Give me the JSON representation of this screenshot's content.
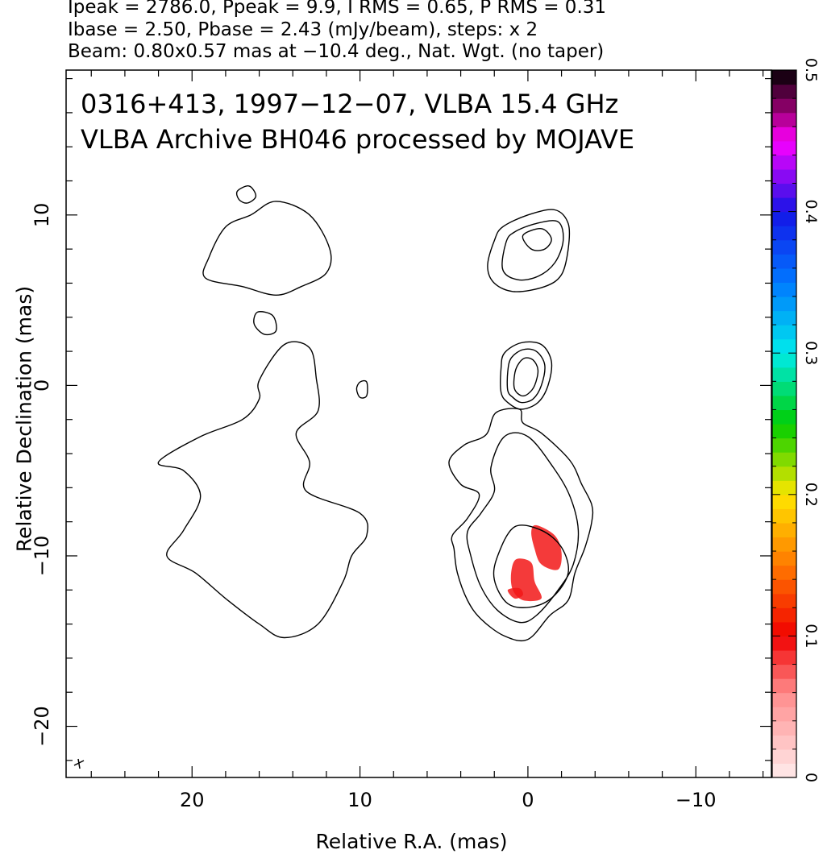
{
  "header": {
    "line1": "Ipeak = 2786.0, Ppeak = 9.9, I RMS = 0.65, P RMS = 0.31",
    "line2": "Ibase = 2.50, Pbase = 2.43 (mJy/beam), steps: x 2",
    "line3": "Beam: 0.80x0.57 mas at −10.4 deg., Nat. Wgt. (no taper)"
  },
  "chart_data": {
    "type": "contour",
    "xlabel": "Relative R.A. (mas)",
    "ylabel": "Relative Declination (mas)",
    "xlim": [
      27.5,
      -14.5
    ],
    "ylim": [
      -23,
      18.5
    ],
    "x_ticks": [
      {
        "value": 20,
        "label": "20"
      },
      {
        "value": 10,
        "label": "10"
      },
      {
        "value": 0,
        "label": "0"
      },
      {
        "value": -10,
        "label": "−10"
      }
    ],
    "y_ticks": [
      {
        "value": 10,
        "label": "10"
      },
      {
        "value": 0,
        "label": "0"
      },
      {
        "value": -10,
        "label": "−10"
      },
      {
        "value": -20,
        "label": "−20"
      }
    ],
    "annotations": [
      "0316+413, 1997−12−07, VLBA 15.4 GHz",
      "VLBA Archive BH046 processed by MOJAVE"
    ],
    "colorbar": {
      "range": [
        0,
        0.5
      ],
      "ticks": [
        {
          "value": 0,
          "label": "0"
        },
        {
          "value": 0.1,
          "label": "0.1"
        },
        {
          "value": 0.2,
          "label": "0.2"
        },
        {
          "value": 0.3,
          "label": "0.3"
        },
        {
          "value": 0.4,
          "label": "0.4"
        },
        {
          "value": 0.5,
          "label": "0.5"
        }
      ]
    },
    "polarization_contours": [
      {
        "name": "north-lobe",
        "points": [
          [
            19.0,
            7.5
          ],
          [
            18.0,
            9.3
          ],
          [
            16.5,
            10.0
          ],
          [
            15.0,
            10.8
          ],
          [
            13.0,
            10.0
          ],
          [
            11.8,
            8.0
          ],
          [
            12.0,
            6.6
          ],
          [
            13.5,
            5.8
          ],
          [
            15.0,
            5.3
          ],
          [
            17.0,
            5.8
          ],
          [
            19.2,
            6.3
          ]
        ]
      },
      {
        "name": "body",
        "points": [
          [
            16.0,
            0.3
          ],
          [
            14.5,
            2.4
          ],
          [
            13.0,
            2.2
          ],
          [
            12.6,
            0.4
          ],
          [
            12.5,
            -1.5
          ],
          [
            13.8,
            -2.8
          ],
          [
            13.0,
            -4.5
          ],
          [
            13.2,
            -6.2
          ],
          [
            10.0,
            -7.5
          ],
          [
            9.6,
            -8.8
          ],
          [
            10.5,
            -10.0
          ],
          [
            11.0,
            -11.5
          ],
          [
            12.5,
            -14.0
          ],
          [
            14.5,
            -14.8
          ],
          [
            16.0,
            -14.0
          ],
          [
            18.0,
            -12.5
          ],
          [
            19.8,
            -11.0
          ],
          [
            21.5,
            -10.0
          ],
          [
            20.5,
            -8.5
          ],
          [
            19.5,
            -6.5
          ],
          [
            20.5,
            -5.0
          ],
          [
            22.0,
            -4.5
          ],
          [
            19.5,
            -3.0
          ],
          [
            17.0,
            -2.0
          ],
          [
            16.0,
            -0.8
          ]
        ]
      },
      {
        "name": "small-1",
        "points": [
          [
            16.1,
            4.3
          ],
          [
            15.2,
            4.1
          ],
          [
            15.0,
            3.2
          ],
          [
            15.7,
            3.0
          ],
          [
            16.3,
            3.6
          ]
        ]
      },
      {
        "name": "small-2",
        "points": [
          [
            17.3,
            11.4
          ],
          [
            16.6,
            11.7
          ],
          [
            16.2,
            11.1
          ],
          [
            16.7,
            10.7
          ],
          [
            17.2,
            10.9
          ]
        ]
      },
      {
        "name": "small-3",
        "points": [
          [
            10.0,
            0.2
          ],
          [
            9.6,
            0.2
          ],
          [
            9.6,
            -0.6
          ],
          [
            10.0,
            -0.7
          ],
          [
            10.2,
            -0.2
          ]
        ]
      }
    ],
    "intensity_contours": [
      {
        "name": "base",
        "points": [
          [
            1.9,
            -1.6
          ],
          [
            0.5,
            -1.4
          ],
          [
            0.3,
            -2.2
          ],
          [
            -0.8,
            -2.8
          ],
          [
            -2.5,
            -4.4
          ],
          [
            -3.2,
            -5.8
          ],
          [
            -3.8,
            -7.0
          ],
          [
            -3.8,
            -8.0
          ],
          [
            -3.4,
            -9.5
          ],
          [
            -2.8,
            -11.0
          ],
          [
            -2.4,
            -12.6
          ],
          [
            -1.3,
            -13.5
          ],
          [
            0.0,
            -14.9
          ],
          [
            1.4,
            -14.7
          ],
          [
            2.8,
            -13.7
          ],
          [
            3.6,
            -12.6
          ],
          [
            4.2,
            -11.0
          ],
          [
            4.4,
            -9.6
          ],
          [
            4.5,
            -8.8
          ],
          [
            3.6,
            -7.8
          ],
          [
            2.9,
            -6.4
          ],
          [
            4.0,
            -5.8
          ],
          [
            4.7,
            -4.5
          ],
          [
            3.8,
            -3.5
          ],
          [
            2.5,
            -2.9
          ]
        ]
      },
      {
        "name": "level-2",
        "points": [
          [
            1.4,
            -3.0
          ],
          [
            0.0,
            -3.0
          ],
          [
            -1.5,
            -4.8
          ],
          [
            -2.5,
            -6.5
          ],
          [
            -3.0,
            -8.5
          ],
          [
            -2.7,
            -10.5
          ],
          [
            -1.8,
            -12.0
          ],
          [
            -0.5,
            -13.5
          ],
          [
            0.5,
            -13.9
          ],
          [
            1.8,
            -13.2
          ],
          [
            2.8,
            -11.8
          ],
          [
            3.4,
            -10.0
          ],
          [
            3.6,
            -8.6
          ],
          [
            2.8,
            -7.5
          ],
          [
            2.0,
            -6.2
          ],
          [
            2.2,
            -4.8
          ]
        ]
      },
      {
        "name": "level-3",
        "points": [
          [
            0.8,
            -8.3
          ],
          [
            -0.8,
            -8.5
          ],
          [
            -2.0,
            -9.5
          ],
          [
            -2.4,
            -11.0
          ],
          [
            -1.5,
            -12.4
          ],
          [
            -0.2,
            -13.0
          ],
          [
            1.2,
            -12.8
          ],
          [
            2.0,
            -11.4
          ],
          [
            1.8,
            -10.0
          ]
        ]
      },
      {
        "name": "core-1",
        "points": [
          [
            1.6,
            -0.4
          ],
          [
            1.6,
            1.0
          ],
          [
            1.4,
            1.9
          ],
          [
            0.4,
            2.5
          ],
          [
            -0.8,
            2.4
          ],
          [
            -1.4,
            1.4
          ],
          [
            -1.2,
            0.0
          ],
          [
            -0.6,
            -1.0
          ],
          [
            0.4,
            -1.4
          ],
          [
            1.2,
            -1.0
          ]
        ]
      },
      {
        "name": "core-2",
        "points": [
          [
            1.2,
            -0.3
          ],
          [
            1.2,
            0.8
          ],
          [
            1.0,
            1.6
          ],
          [
            0.3,
            2.1
          ],
          [
            -0.5,
            2.0
          ],
          [
            -1.0,
            1.2
          ],
          [
            -0.8,
            0.0
          ],
          [
            -0.3,
            -0.8
          ],
          [
            0.4,
            -1.0
          ],
          [
            0.9,
            -0.7
          ]
        ]
      },
      {
        "name": "core-3",
        "points": [
          [
            0.8,
            -0.2
          ],
          [
            0.8,
            0.6
          ],
          [
            0.6,
            1.2
          ],
          [
            0.2,
            1.6
          ],
          [
            -0.3,
            1.5
          ],
          [
            -0.6,
            0.9
          ],
          [
            -0.4,
            0.0
          ],
          [
            0.0,
            -0.5
          ],
          [
            0.4,
            -0.6
          ]
        ]
      },
      {
        "name": "north-jet-1",
        "points": [
          [
            2.0,
            8.5
          ],
          [
            1.5,
            9.3
          ],
          [
            0.0,
            10.0
          ],
          [
            -1.6,
            10.3
          ],
          [
            -2.4,
            9.5
          ],
          [
            -2.4,
            8.0
          ],
          [
            -2.0,
            6.5
          ],
          [
            -1.0,
            5.8
          ],
          [
            0.8,
            5.5
          ],
          [
            2.0,
            6.0
          ],
          [
            2.4,
            7.0
          ]
        ]
      },
      {
        "name": "north-jet-2",
        "points": [
          [
            1.3,
            8.4
          ],
          [
            0.8,
            9.0
          ],
          [
            -0.5,
            9.5
          ],
          [
            -1.8,
            9.6
          ],
          [
            -2.1,
            8.5
          ],
          [
            -1.6,
            7.2
          ],
          [
            -0.6,
            6.4
          ],
          [
            0.6,
            6.2
          ],
          [
            1.5,
            6.8
          ]
        ]
      },
      {
        "name": "north-jet-3",
        "points": [
          [
            0.3,
            8.8
          ],
          [
            -0.8,
            9.2
          ],
          [
            -1.4,
            8.6
          ],
          [
            -1.0,
            8.0
          ],
          [
            -0.2,
            8.0
          ]
        ]
      }
    ],
    "polarized_patches": [
      {
        "name": "patch-a",
        "points": [
          [
            -0.5,
            -8.2
          ],
          [
            -1.6,
            -8.8
          ],
          [
            -2.0,
            -9.8
          ],
          [
            -1.8,
            -10.8
          ],
          [
            -0.8,
            -10.5
          ],
          [
            -0.4,
            -9.6
          ],
          [
            -0.2,
            -8.6
          ]
        ]
      },
      {
        "name": "patch-b",
        "points": [
          [
            0.7,
            -10.2
          ],
          [
            -0.2,
            -10.4
          ],
          [
            -0.4,
            -11.5
          ],
          [
            -0.8,
            -12.5
          ],
          [
            0.3,
            -12.6
          ],
          [
            0.9,
            -12.0
          ],
          [
            1.0,
            -11.0
          ]
        ]
      },
      {
        "name": "patch-c",
        "points": [
          [
            1.2,
            -12.0
          ],
          [
            0.5,
            -11.9
          ],
          [
            0.3,
            -12.3
          ],
          [
            0.8,
            -12.5
          ]
        ]
      }
    ]
  }
}
